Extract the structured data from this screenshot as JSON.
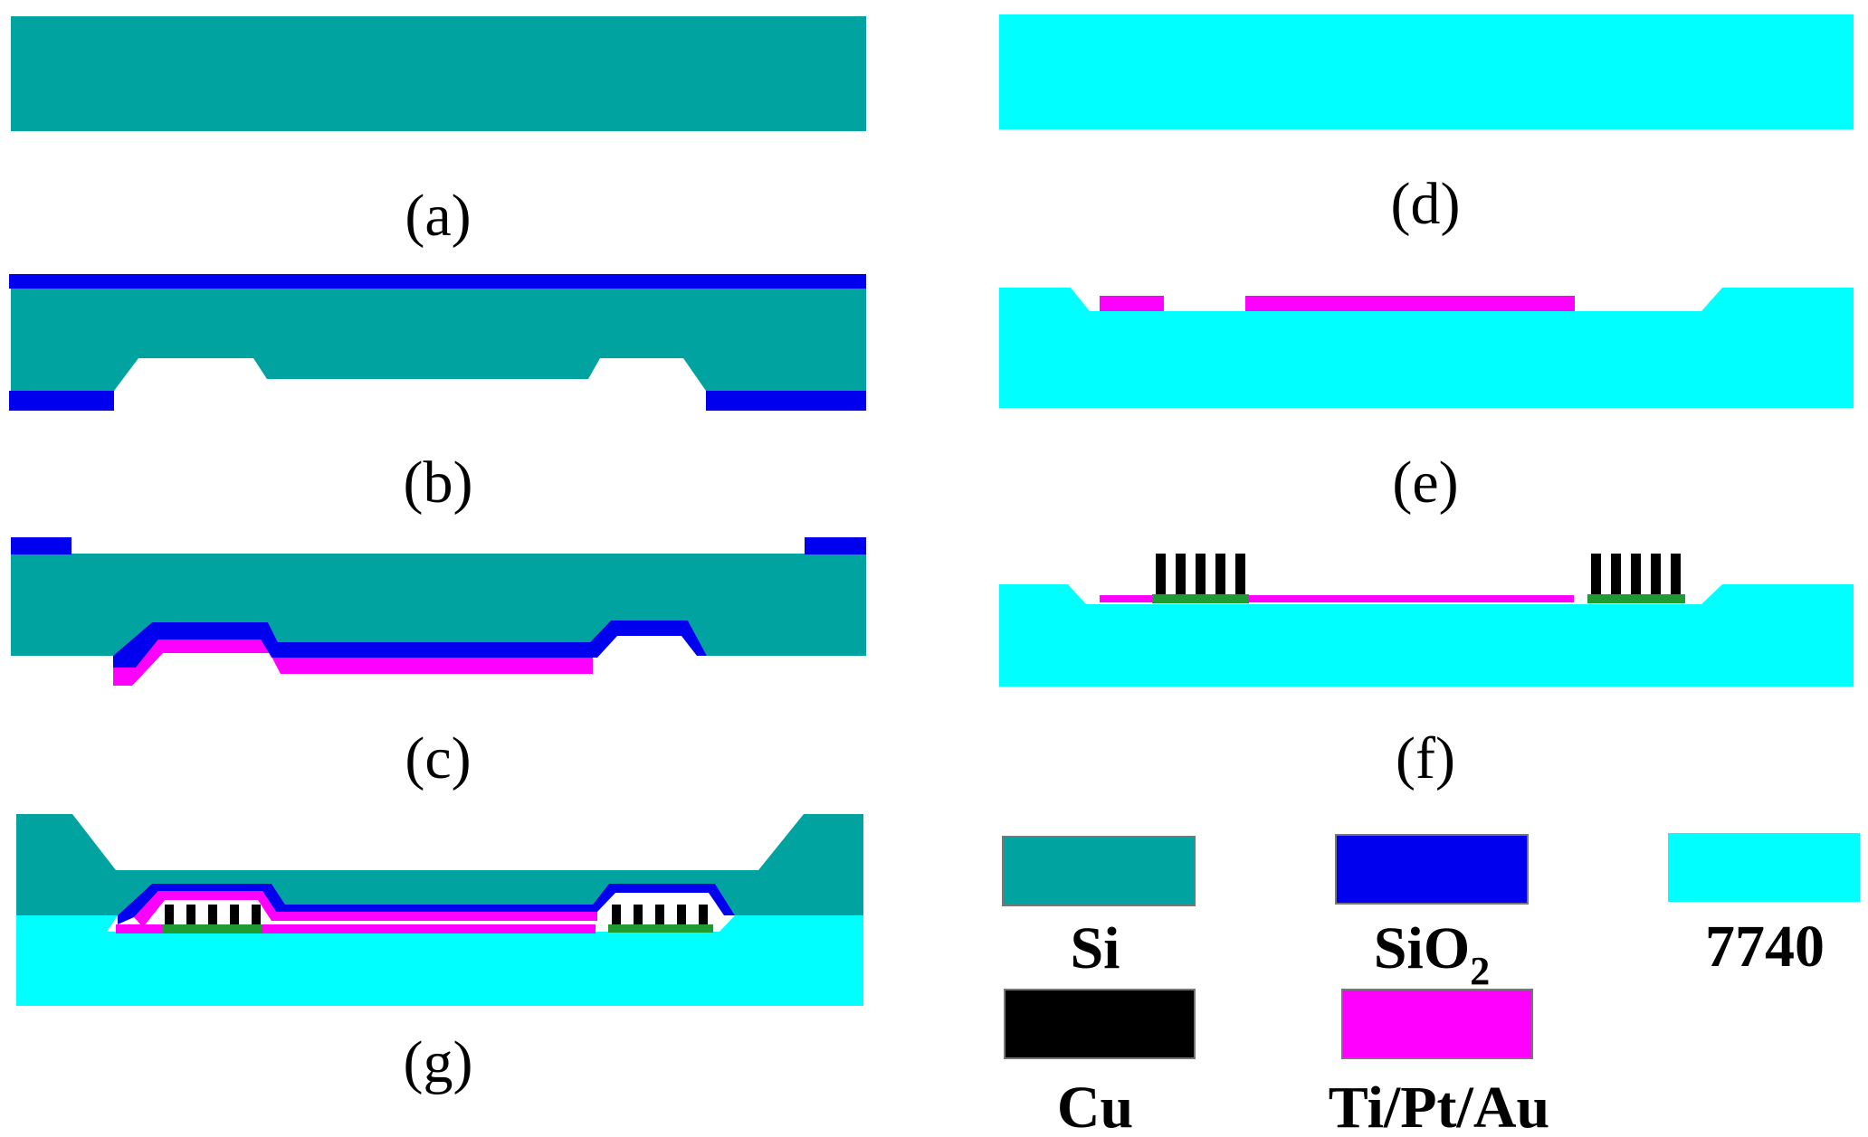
{
  "materials": {
    "si": {
      "label": "Si",
      "color": "#00A3A0"
    },
    "sio2": {
      "label": "SiO",
      "sub": "2",
      "color": "#0000EE"
    },
    "glass": {
      "label": "7740",
      "color": "#00FFFF"
    },
    "cu": {
      "label": "Cu",
      "color": "#000000"
    },
    "tiptau": {
      "label": "Ti/Pt/Au",
      "color": "#FF00FF"
    },
    "seed": {
      "color": "#1F9B33"
    }
  },
  "steps": {
    "a": "(a)",
    "b": "(b)",
    "c": "(c)",
    "d": "(d)",
    "e": "(e)",
    "f": "(f)",
    "g": "(g)"
  }
}
